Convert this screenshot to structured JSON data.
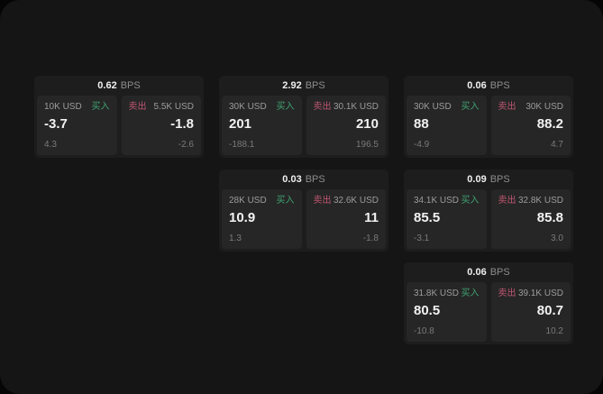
{
  "labels": {
    "bps_suffix": "BPS",
    "buy": "买入",
    "sell": "卖出"
  },
  "colors": {
    "buy_green": "#3fa371",
    "sell_rose": "#bf5672",
    "window_bg": "#151515",
    "card_bg": "#1d1d1d",
    "panel_bg": "#262626"
  },
  "cards": [
    {
      "bps": "0.62",
      "buy": {
        "amount": "10K USD",
        "price": "-3.7",
        "delta": "4.3"
      },
      "sell": {
        "amount": "5.5K USD",
        "price": "-1.8",
        "delta": "-2.6"
      }
    },
    {
      "bps": "2.92",
      "buy": {
        "amount": "30K USD",
        "price": "201",
        "delta": "-188.1"
      },
      "sell": {
        "amount": "30.1K USD",
        "price": "210",
        "delta": "196.5"
      }
    },
    {
      "bps": "0.06",
      "buy": {
        "amount": "30K USD",
        "price": "88",
        "delta": "-4.9"
      },
      "sell": {
        "amount": "30K USD",
        "price": "88.2",
        "delta": "4.7"
      }
    },
    {
      "bps": "0.03",
      "buy": {
        "amount": "28K USD",
        "price": "10.9",
        "delta": "1.3"
      },
      "sell": {
        "amount": "32.6K USD",
        "price": "11",
        "delta": "-1.8"
      }
    },
    {
      "bps": "0.09",
      "buy": {
        "amount": "34.1K USD",
        "price": "85.5",
        "delta": "-3.1"
      },
      "sell": {
        "amount": "32.8K USD",
        "price": "85.8",
        "delta": "3.0"
      }
    },
    {
      "bps": "0.06",
      "buy": {
        "amount": "31.8K USD",
        "price": "80.5",
        "delta": "-10.8"
      },
      "sell": {
        "amount": "39.1K USD",
        "price": "80.7",
        "delta": "10.2"
      }
    }
  ]
}
